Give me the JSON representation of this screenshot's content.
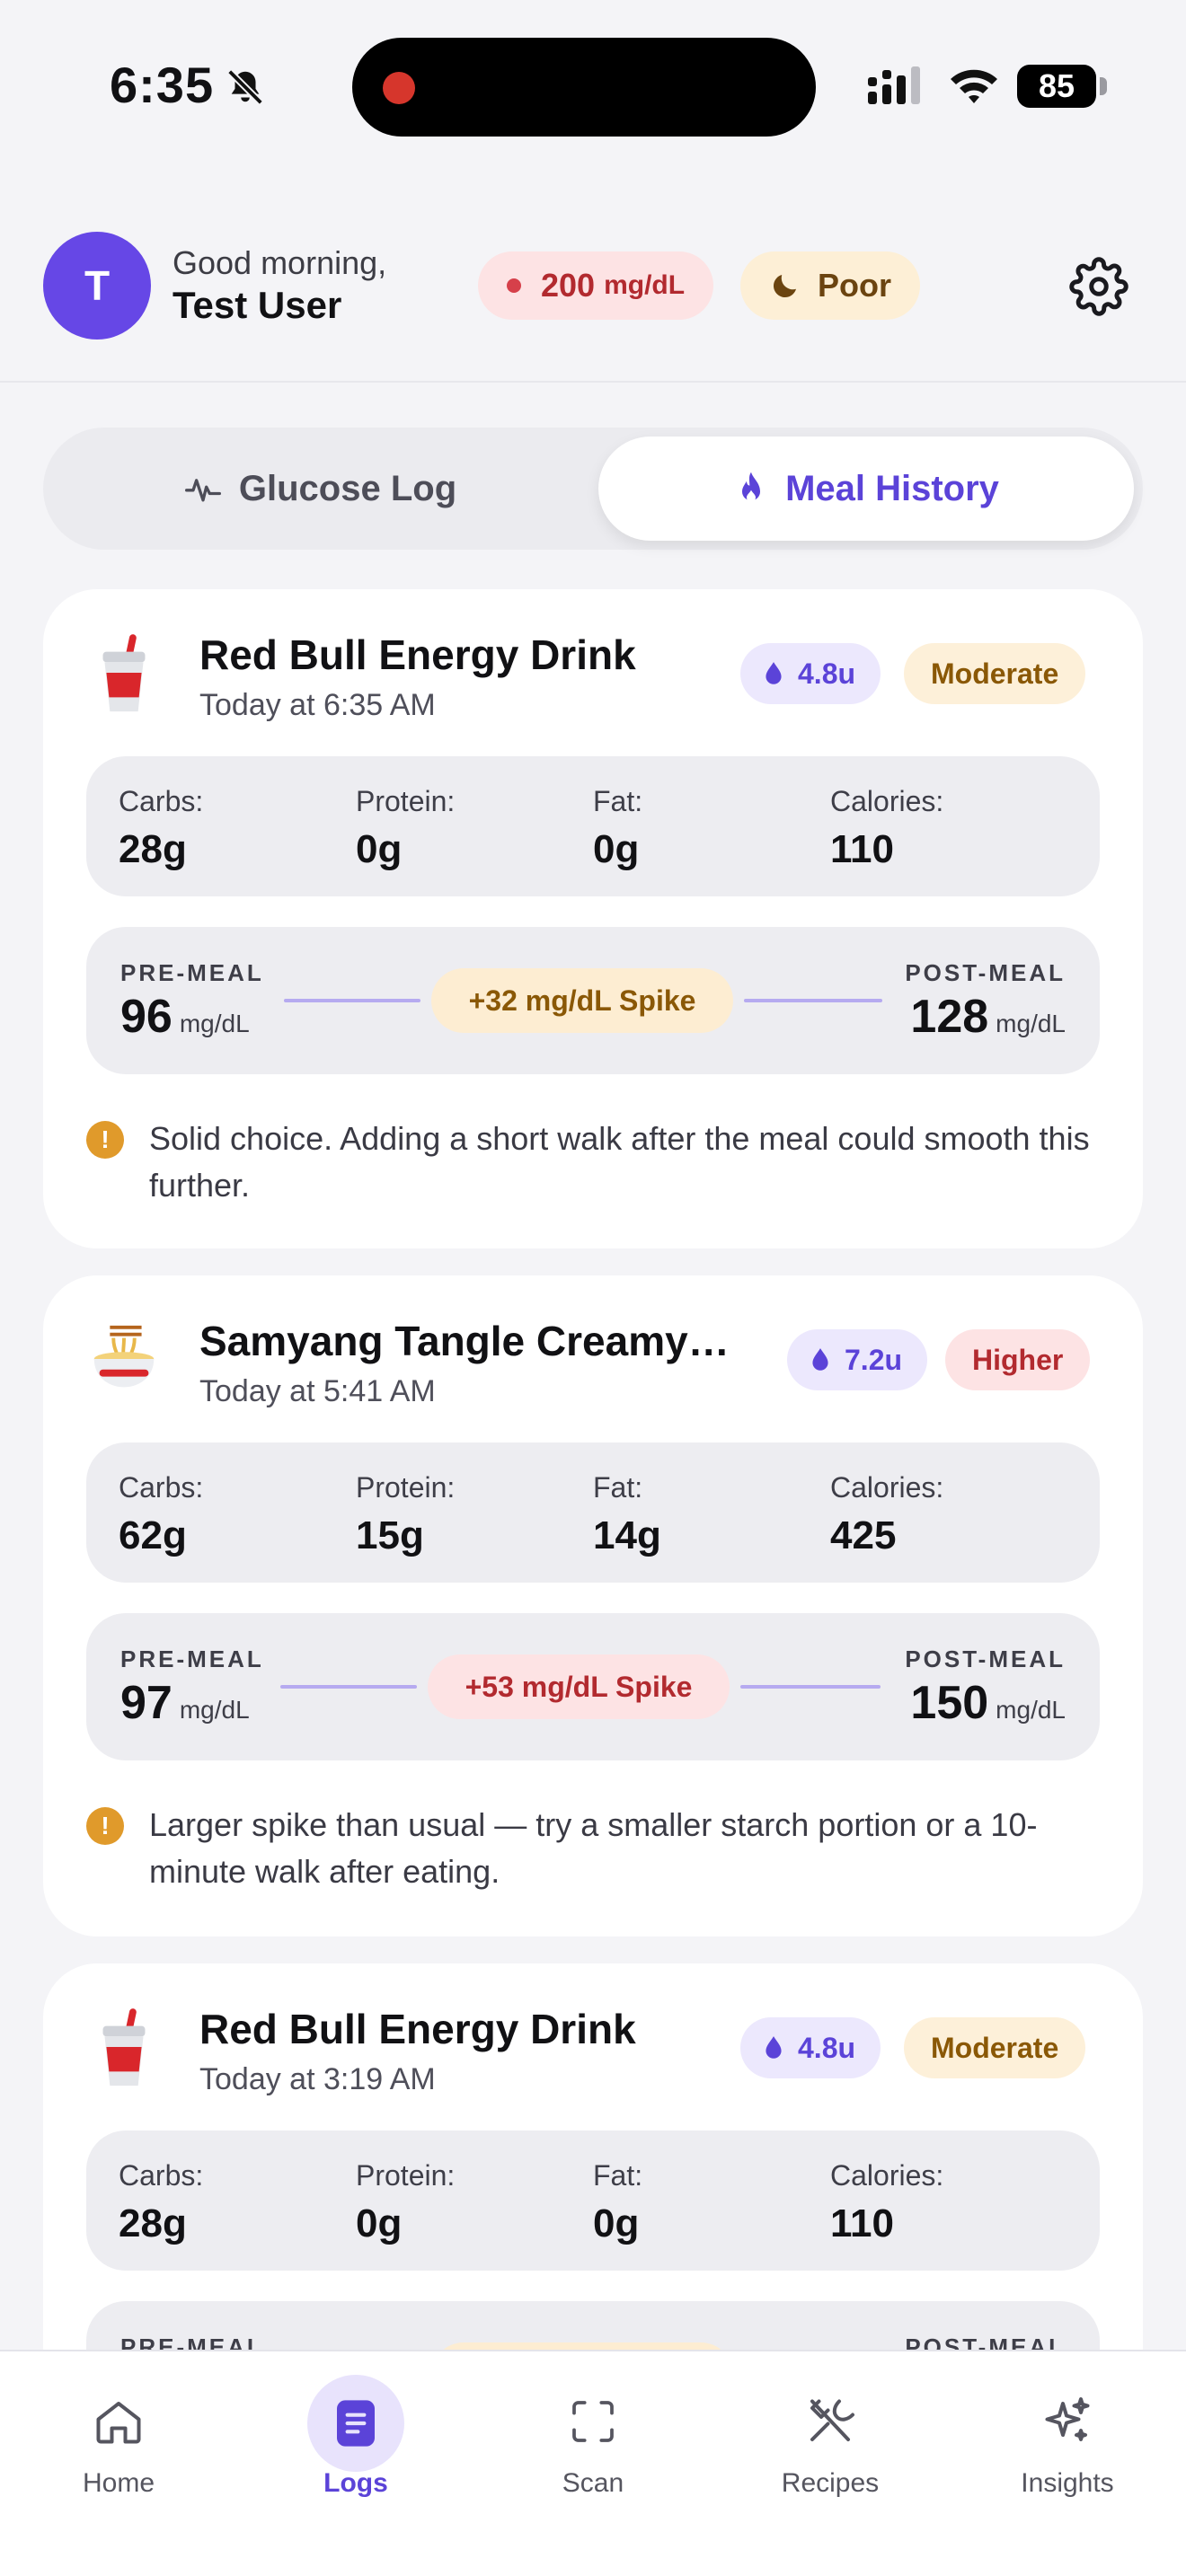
{
  "status_bar": {
    "time": "6:35",
    "battery": "85"
  },
  "header": {
    "avatar_initial": "T",
    "greeting": "Good morning,",
    "user_name": "Test User",
    "glucose": {
      "value": "200",
      "unit": "mg/dL"
    },
    "sleep": "Poor"
  },
  "tabs": {
    "glucose_log": "Glucose Log",
    "meal_history": "Meal History",
    "active": "meal_history"
  },
  "macro_labels": {
    "carbs": "Carbs:",
    "protein": "Protein:",
    "fat": "Fat:",
    "calories": "Calories:"
  },
  "spike_labels": {
    "pre": "PRE-MEAL",
    "post": "POST-MEAL",
    "unit": "mg/dL"
  },
  "meals": [
    {
      "name": "Red Bull Energy Drink",
      "time": "Today at 6:35 AM",
      "icon": "drink-cup-icon",
      "insulin": "4.8u",
      "impact": "Moderate",
      "macros": {
        "carbs": "28g",
        "protein": "0g",
        "fat": "0g",
        "calories": "110"
      },
      "pre_meal": "96",
      "post_meal": "128",
      "spike": "+32 mg/dL Spike",
      "note": "Solid choice. Adding a short walk after the meal could smooth this further."
    },
    {
      "name": "Samyang Tangle Creamy…",
      "time": "Today at 5:41 AM",
      "icon": "noodle-bowl-icon",
      "insulin": "7.2u",
      "impact": "Higher",
      "macros": {
        "carbs": "62g",
        "protein": "15g",
        "fat": "14g",
        "calories": "425"
      },
      "pre_meal": "97",
      "post_meal": "150",
      "spike": "+53 mg/dL Spike",
      "note": "Larger spike than usual — try a smaller starch portion or a 10-minute walk after eating."
    },
    {
      "name": "Red Bull Energy Drink",
      "time": "Today at 3:19 AM",
      "icon": "drink-cup-icon",
      "insulin": "4.8u",
      "impact": "Moderate",
      "macros": {
        "carbs": "28g",
        "protein": "0g",
        "fat": "0g",
        "calories": "110"
      },
      "pre_meal": "",
      "post_meal": "",
      "spike": "",
      "note": ""
    }
  ],
  "tab_bar": [
    {
      "label": "Home",
      "icon": "home-icon",
      "active": false
    },
    {
      "label": "Logs",
      "icon": "logs-icon",
      "active": true
    },
    {
      "label": "Scan",
      "icon": "scan-icon",
      "active": false
    },
    {
      "label": "Recipes",
      "icon": "recipes-icon",
      "active": false
    },
    {
      "label": "Insights",
      "icon": "insights-icon",
      "active": false
    }
  ],
  "colors": {
    "accent": "#5b43d8",
    "avatar": "#6647e6",
    "high": "#b22a2f",
    "moderate": "#8a5806",
    "background": "#f4f4f7"
  }
}
